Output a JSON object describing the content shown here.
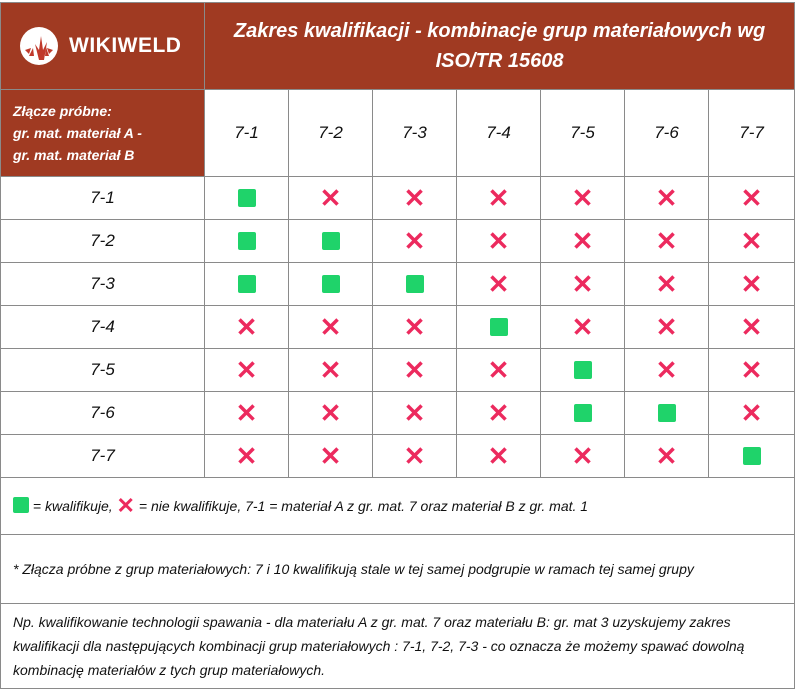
{
  "brand": {
    "name": "WIKIWELD",
    "logo_icon": "wikiweld-spark-logo"
  },
  "title": "Zakres kwalifikacji - kombinacje grup materiałowych wg ISO/TR 15608",
  "corner_label": [
    "Złącze próbne:",
    "gr. mat. materiał A -",
    "gr. mat. materiał B"
  ],
  "columns": [
    "7-1",
    "7-2",
    "7-3",
    "7-4",
    "7-5",
    "7-6",
    "7-7"
  ],
  "rows": [
    {
      "label": "7-1",
      "cells": [
        "Q",
        "X",
        "X",
        "X",
        "X",
        "X",
        "X"
      ]
    },
    {
      "label": "7-2",
      "cells": [
        "Q",
        "Q",
        "X",
        "X",
        "X",
        "X",
        "X"
      ]
    },
    {
      "label": "7-3",
      "cells": [
        "Q",
        "Q",
        "Q",
        "X",
        "X",
        "X",
        "X"
      ]
    },
    {
      "label": "7-4",
      "cells": [
        "X",
        "X",
        "X",
        "Q",
        "X",
        "X",
        "X"
      ]
    },
    {
      "label": "7-5",
      "cells": [
        "X",
        "X",
        "X",
        "X",
        "Q",
        "X",
        "X"
      ]
    },
    {
      "label": "7-6",
      "cells": [
        "X",
        "X",
        "X",
        "X",
        "Q",
        "Q",
        "X"
      ]
    },
    {
      "label": "7-7",
      "cells": [
        "X",
        "X",
        "X",
        "X",
        "X",
        "X",
        "Q"
      ]
    }
  ],
  "legend": {
    "qualifies": "= kwalifikuje,",
    "not_qualifies": "= nie kwalifikuje, 7-1 = materiał A z gr. mat. 7 oraz materiał B z gr. mat. 1"
  },
  "note": "* Złącza próbne z grup materiałowych: 7 i 10  kwalifikują stale w tej samej podgrupie w ramach tej samej grupy",
  "example": "Np. kwalifikowanie technologii spawania -  dla materiału A z gr. mat. 7 oraz materiału B: gr. mat 3 uzyskujemy zakres kwalifikacji dla następujących kombinacji grup materiałowych : 7-1, 7-2, 7-3 - co oznacza że możemy spawać  dowolną kombinację materiałów z tych grup materiałowych.",
  "colors": {
    "header_bg": "#a03a22",
    "qualifies": "#1fd36a",
    "not_qualifies": "#ec2a5e"
  }
}
